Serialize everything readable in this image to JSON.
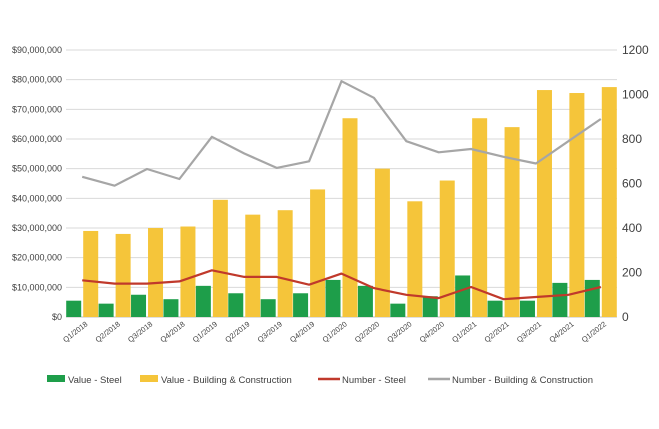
{
  "chart_data": {
    "type": "bar",
    "categories": [
      "Q1/2018",
      "Q2/2018",
      "Q3/2018",
      "Q4/2018",
      "Q1/2019",
      "Q2/2019",
      "Q3/2019",
      "Q4/2019",
      "Q1/2020",
      "Q2/2020",
      "Q3/2020",
      "Q4/2020",
      "Q1/2021",
      "Q2/2021",
      "Q3/2021",
      "Q4/2021",
      "Q1/2022"
    ],
    "y_left": {
      "ylim": [
        0,
        90000000
      ],
      "ticks": [
        0,
        10000000,
        20000000,
        30000000,
        40000000,
        50000000,
        60000000,
        70000000,
        80000000,
        90000000
      ],
      "tick_labels": [
        "$0",
        "$10,000,000",
        "$20,000,000",
        "$30,000,000",
        "$40,000,000",
        "$50,000,000",
        "$60,000,000",
        "$70,000,000",
        "$80,000,000",
        "$90,000,000"
      ]
    },
    "y_right": {
      "ylim": [
        0,
        1200
      ],
      "ticks": [
        0,
        200,
        400,
        600,
        800,
        1000,
        1200
      ],
      "tick_labels": [
        "0",
        "200",
        "400",
        "600",
        "800",
        "1000",
        "1200"
      ]
    },
    "series": [
      {
        "name": "Value - Steel",
        "kind": "bar",
        "axis": "left",
        "color": "#1e9e4a",
        "values": [
          5500000,
          4500000,
          7500000,
          6000000,
          10500000,
          8000000,
          6000000,
          8000000,
          12500000,
          10500000,
          4500000,
          7000000,
          14000000,
          5500000,
          5500000,
          11500000,
          12500000
        ]
      },
      {
        "name": "Value - Building & Construction",
        "kind": "bar",
        "axis": "left",
        "color": "#f5c53a",
        "values": [
          29000000,
          28000000,
          30000000,
          30500000,
          39500000,
          34500000,
          36000000,
          43000000,
          67000000,
          50000000,
          39000000,
          46000000,
          67000000,
          64000000,
          76500000,
          75500000,
          77500000
        ]
      },
      {
        "name": "Number - Steel",
        "kind": "line",
        "axis": "right",
        "color": "#c0392b",
        "values": [
          165,
          150,
          150,
          160,
          210,
          180,
          180,
          145,
          195,
          130,
          100,
          85,
          135,
          80,
          90,
          100,
          135
        ]
      },
      {
        "name": "Number - Building & Construction",
        "kind": "line",
        "axis": "right",
        "color": "#a6a6a6",
        "values": [
          630,
          590,
          665,
          620,
          810,
          735,
          670,
          700,
          1060,
          985,
          790,
          740,
          755,
          720,
          690,
          790,
          890
        ]
      }
    ],
    "grid": true,
    "legend_position": "bottom"
  }
}
